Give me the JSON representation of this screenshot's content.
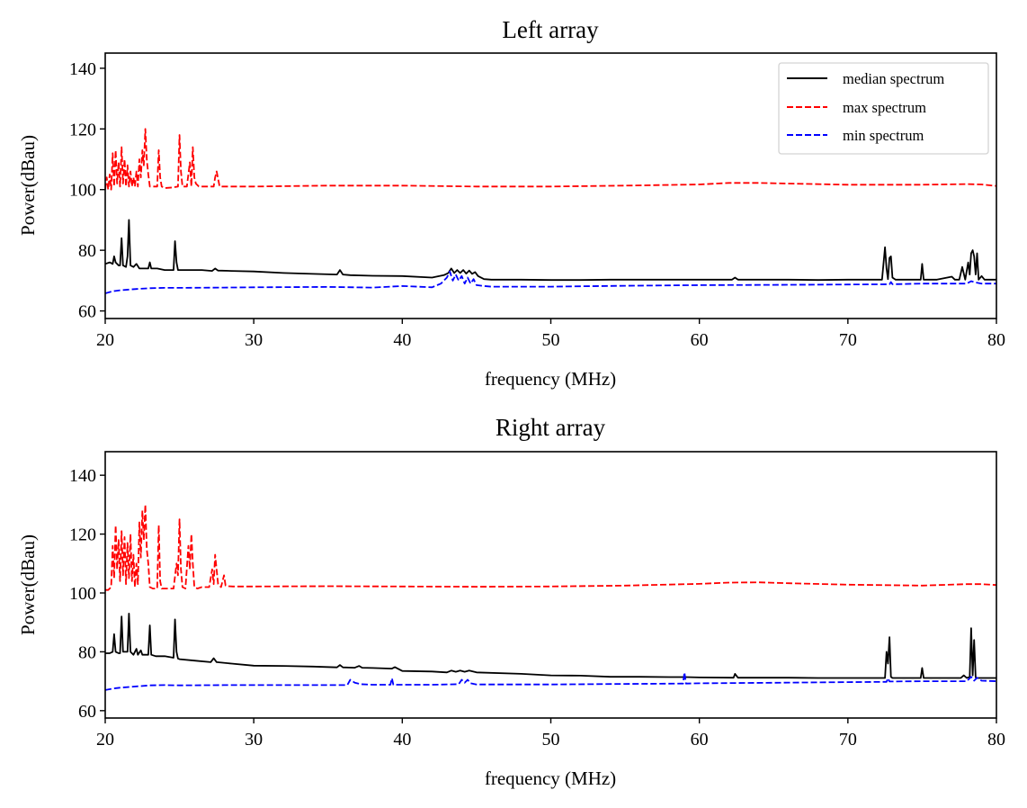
{
  "chart_data": [
    {
      "type": "line",
      "title": "Left array",
      "xlabel": "frequency (MHz)",
      "ylabel": "Power(dBau)",
      "xlim": [
        20,
        80
      ],
      "ylim": [
        57.5,
        145
      ],
      "xticks": [
        20,
        30,
        40,
        50,
        60,
        70,
        80
      ],
      "yticks": [
        60,
        80,
        100,
        120,
        140
      ],
      "grid": false,
      "legend": {
        "placement": "top-right",
        "entries": [
          "median spectrum",
          "max spectrum",
          "min spectrum"
        ]
      },
      "series": [
        {
          "name": "median spectrum",
          "color": "#000000",
          "style": "solid",
          "x": [
            20,
            20.3,
            20.5,
            20.6,
            20.7,
            20.9,
            21.0,
            21.1,
            21.2,
            21.4,
            21.5,
            21.6,
            21.7,
            21.9,
            22.1,
            22.3,
            22.5,
            22.7,
            22.9,
            23.0,
            23.1,
            23.5,
            24.0,
            24.6,
            24.7,
            24.8,
            24.9,
            25.0,
            25.5,
            26.5,
            27.2,
            27.4,
            27.6,
            28.5,
            30,
            32,
            34,
            35.6,
            35.8,
            36.0,
            36.5,
            38,
            40,
            42,
            42.8,
            43.1,
            43.3,
            43.5,
            43.7,
            43.9,
            44.1,
            44.3,
            44.5,
            44.7,
            44.9,
            45.1,
            45.5,
            46,
            48,
            50,
            52,
            54,
            56,
            58,
            60,
            62.2,
            62.4,
            62.6,
            64,
            66,
            68,
            70,
            71,
            72.3,
            72.5,
            72.6,
            72.7,
            72.8,
            72.9,
            73.0,
            73.2,
            74,
            74.9,
            75.0,
            75.1,
            76,
            77.0,
            77.2,
            77.5,
            77.7,
            77.9,
            78.1,
            78.2,
            78.3,
            78.4,
            78.5,
            78.6,
            78.7,
            78.8,
            79.0,
            79.2,
            79.5,
            80
          ],
          "y": [
            75.5,
            76,
            75.5,
            78,
            76,
            75,
            75,
            84,
            75,
            74.5,
            78,
            90,
            75,
            74.5,
            75.5,
            74,
            74,
            74,
            74,
            76,
            74,
            74,
            73.5,
            73.5,
            83,
            76,
            73.5,
            73.5,
            73.5,
            73.5,
            73.2,
            74,
            73.3,
            73.2,
            73,
            72.5,
            72.2,
            72,
            73.5,
            72,
            71.8,
            71.6,
            71.5,
            71,
            71.8,
            72.5,
            74,
            72.5,
            73.5,
            72.5,
            73.5,
            72.3,
            73.3,
            72.2,
            72.8,
            71.5,
            70.5,
            70.3,
            70.3,
            70.2,
            70.2,
            70.3,
            70.3,
            70.3,
            70.3,
            70.3,
            71,
            70.3,
            70.3,
            70.3,
            70.2,
            70.3,
            70.3,
            70.3,
            81,
            74,
            70.5,
            77.5,
            78,
            71,
            70.3,
            70.3,
            70.3,
            75.5,
            70.3,
            70.3,
            71.3,
            70.3,
            70.3,
            74.5,
            70.3,
            76,
            72,
            79,
            80,
            78,
            72,
            79,
            70.3,
            71.5,
            70.3,
            70.3,
            70.3
          ],
          "peaks": [
            {
              "x": 21.6,
              "y": 90
            },
            {
              "x": 21.1,
              "y": 84
            },
            {
              "x": 24.7,
              "y": 83
            },
            {
              "x": 72.5,
              "y": 81
            },
            {
              "x": 78.4,
              "y": 80
            }
          ]
        },
        {
          "name": "max spectrum",
          "color": "#ff0000",
          "style": "dashed",
          "x": [
            20,
            20.1,
            20.2,
            20.3,
            20.4,
            20.5,
            20.6,
            20.7,
            20.8,
            20.9,
            21.0,
            21.1,
            21.2,
            21.3,
            21.4,
            21.5,
            21.6,
            21.7,
            21.8,
            21.9,
            22.0,
            22.1,
            22.2,
            22.3,
            22.4,
            22.5,
            22.6,
            22.7,
            22.8,
            22.9,
            23.0,
            23.2,
            23.5,
            23.6,
            23.7,
            23.8,
            24.0,
            24.5,
            24.9,
            25.0,
            25.1,
            25.2,
            25.5,
            25.7,
            25.8,
            25.9,
            26.0,
            26.1,
            26.3,
            26.8,
            27.3,
            27.4,
            27.5,
            27.7,
            28,
            30,
            35,
            40,
            45,
            50,
            55,
            60,
            62,
            64,
            66,
            70,
            75,
            78,
            79,
            80
          ],
          "y": [
            100,
            104,
            100,
            105,
            100,
            112,
            101,
            113,
            102,
            109,
            101,
            114,
            102,
            110,
            101,
            108,
            101,
            106,
            101,
            104,
            101,
            106,
            101,
            110,
            104,
            113,
            108,
            120,
            110,
            105,
            101,
            101,
            101,
            113,
            104,
            101,
            100.5,
            100.7,
            101,
            118,
            106,
            101,
            101,
            109,
            101,
            114,
            104,
            102,
            101,
            101,
            101,
            104,
            106,
            101,
            101,
            101,
            101.3,
            101.3,
            101,
            101,
            101.3,
            101.7,
            102.2,
            102.2,
            102,
            101.6,
            101.6,
            101.8,
            101.7,
            101.2
          ],
          "peaks": [
            {
              "x": 22.7,
              "y": 120
            },
            {
              "x": 25.0,
              "y": 118
            },
            {
              "x": 25.9,
              "y": 114
            },
            {
              "x": 21.1,
              "y": 114
            },
            {
              "x": 23.6,
              "y": 113
            }
          ]
        },
        {
          "name": "min spectrum",
          "color": "#0000ff",
          "style": "dashed",
          "x": [
            20,
            20.5,
            21,
            22,
            23,
            24,
            25,
            28,
            30,
            35,
            38,
            40,
            42,
            42.6,
            43.0,
            43.2,
            43.4,
            43.6,
            43.8,
            44.0,
            44.2,
            44.4,
            44.6,
            44.8,
            45.0,
            45.5,
            46,
            50,
            55,
            60,
            65,
            70,
            72.8,
            72.9,
            73.0,
            75,
            78,
            78.3,
            78.5,
            79,
            80
          ],
          "y": [
            65.8,
            66.5,
            66.8,
            67.2,
            67.5,
            67.6,
            67.6,
            67.7,
            67.8,
            67.9,
            67.7,
            68.2,
            67.8,
            69,
            71,
            73,
            70,
            72,
            70,
            71.5,
            69,
            71,
            69,
            70.5,
            68.5,
            68.2,
            68,
            68,
            68.3,
            68.5,
            68.6,
            68.7,
            68.8,
            69.5,
            68.8,
            69,
            69,
            69.8,
            69.5,
            69,
            69
          ]
        }
      ]
    },
    {
      "type": "line",
      "title": "Right array",
      "xlabel": "frequency (MHz)",
      "ylabel": "Power(dBau)",
      "xlim": [
        20,
        80
      ],
      "ylim": [
        57.5,
        148
      ],
      "xticks": [
        20,
        30,
        40,
        50,
        60,
        70,
        80
      ],
      "yticks": [
        60,
        80,
        100,
        120,
        140
      ],
      "grid": false,
      "legend": null,
      "series": [
        {
          "name": "median spectrum",
          "color": "#000000",
          "style": "solid",
          "x": [
            20,
            20.2,
            20.3,
            20.5,
            20.6,
            20.7,
            20.9,
            21.0,
            21.1,
            21.2,
            21.3,
            21.5,
            21.6,
            21.7,
            21.9,
            22.1,
            22.2,
            22.4,
            22.5,
            22.7,
            22.9,
            23.0,
            23.1,
            23.4,
            24.0,
            24.6,
            24.7,
            24.8,
            24.9,
            25.0,
            26,
            27.1,
            27.3,
            27.5,
            28.5,
            30,
            32,
            34,
            35.6,
            35.8,
            36.0,
            36.8,
            37.1,
            37.3,
            38,
            39.3,
            39.5,
            40,
            42,
            43.0,
            43.3,
            43.6,
            43.9,
            44.2,
            44.5,
            45,
            48,
            50,
            52,
            54,
            56,
            58,
            59.0,
            60,
            62.3,
            62.4,
            62.6,
            64,
            66,
            68,
            70,
            72.5,
            72.6,
            72.7,
            72.8,
            72.9,
            73.0,
            73.2,
            74,
            74.9,
            75.0,
            75.1,
            76,
            77.6,
            77.8,
            78.0,
            78.2,
            78.3,
            78.4,
            78.5,
            78.6,
            78.7,
            78.8,
            79.0,
            79.5,
            80
          ],
          "y": [
            79.5,
            79.5,
            79.5,
            80,
            86,
            80,
            79.5,
            79.5,
            92,
            80,
            80,
            80,
            93,
            80,
            79,
            81,
            79,
            80.5,
            79,
            79,
            79,
            89,
            79,
            78.5,
            78.5,
            78,
            91,
            80,
            77.7,
            77.5,
            77,
            76.5,
            77.8,
            76.5,
            76,
            75.3,
            75.2,
            75,
            74.7,
            75.5,
            74.7,
            74.6,
            75.2,
            74.6,
            74.5,
            74.3,
            74.8,
            73.5,
            73.3,
            73,
            73.6,
            73.2,
            73.6,
            73.2,
            73.6,
            73,
            72.5,
            72,
            71.9,
            71.5,
            71.5,
            71.4,
            71.4,
            71.3,
            71.2,
            72.5,
            71.2,
            71.2,
            71.2,
            71.1,
            71.1,
            71.1,
            80,
            76,
            85,
            71.5,
            71.1,
            71.1,
            71.1,
            71.1,
            74.5,
            71.1,
            71.1,
            71.1,
            72,
            71.1,
            71.5,
            88,
            72,
            84,
            71.3,
            71.1,
            71.1,
            71.1,
            71.1,
            71.1
          ],
          "peaks": [
            {
              "x": 21.6,
              "y": 93
            },
            {
              "x": 21.1,
              "y": 92
            },
            {
              "x": 24.7,
              "y": 91
            },
            {
              "x": 23.0,
              "y": 89
            },
            {
              "x": 78.3,
              "y": 88
            },
            {
              "x": 72.9,
              "y": 85
            }
          ]
        },
        {
          "name": "max spectrum",
          "color": "#ff0000",
          "style": "dashed",
          "x": [
            20,
            20.2,
            20.4,
            20.5,
            20.6,
            20.7,
            20.8,
            20.9,
            21.0,
            21.1,
            21.2,
            21.3,
            21.4,
            21.5,
            21.6,
            21.7,
            21.8,
            21.9,
            22.0,
            22.1,
            22.2,
            22.3,
            22.4,
            22.5,
            22.6,
            22.7,
            22.8,
            22.9,
            23.0,
            23.2,
            23.5,
            23.6,
            23.7,
            23.8,
            24.0,
            24.3,
            24.6,
            24.8,
            24.9,
            25.0,
            25.1,
            25.2,
            25.4,
            25.6,
            25.7,
            25.8,
            25.9,
            26.0,
            26.2,
            26.5,
            27.0,
            27.2,
            27.3,
            27.4,
            27.6,
            27.8,
            28.0,
            28.1,
            28.3,
            28.6,
            29,
            30,
            35,
            40,
            45,
            50,
            55,
            60,
            62,
            64,
            66,
            70,
            75,
            78,
            79,
            80
          ],
          "y": [
            101,
            101,
            102,
            116,
            105,
            123,
            108,
            118,
            104,
            121,
            106,
            119,
            103,
            117,
            105,
            120,
            104,
            113,
            102,
            110,
            103,
            124,
            112,
            128,
            118,
            130,
            115,
            110,
            102,
            101.5,
            101.5,
            123,
            104,
            101.5,
            101.5,
            101.5,
            101.5,
            110,
            106,
            125,
            108,
            102,
            101.5,
            116,
            108,
            120,
            110,
            102,
            101.5,
            102,
            102,
            108,
            103,
            113,
            103,
            102,
            106,
            102.5,
            102.3,
            102.2,
            102.2,
            102.2,
            102.3,
            102.2,
            102.1,
            102.2,
            102.5,
            103.1,
            103.5,
            103.6,
            103.3,
            102.8,
            102.5,
            103,
            103,
            102.7
          ],
          "peaks": [
            {
              "x": 22.7,
              "y": 130
            },
            {
              "x": 25.0,
              "y": 125
            },
            {
              "x": 23.6,
              "y": 123
            },
            {
              "x": 20.7,
              "y": 123
            }
          ]
        },
        {
          "name": "min spectrum",
          "color": "#0000ff",
          "style": "dashed",
          "x": [
            20,
            20.5,
            21,
            22,
            23,
            24,
            25,
            28,
            30,
            35,
            36.3,
            36.5,
            36.8,
            37.2,
            38,
            39.2,
            39.3,
            39.4,
            40,
            42,
            43.8,
            44.0,
            44.2,
            44.4,
            44.6,
            45,
            48,
            50,
            55,
            58.9,
            59.0,
            59.1,
            60,
            65,
            70,
            72.6,
            72.7,
            72.8,
            75,
            78,
            78.3,
            78.5,
            78.7,
            79,
            80
          ],
          "y": [
            67,
            67.5,
            67.8,
            68.2,
            68.6,
            68.7,
            68.6,
            68.7,
            68.7,
            68.7,
            68.7,
            70.5,
            69.5,
            69,
            68.8,
            68.8,
            71,
            68.8,
            68.8,
            68.8,
            69,
            70.5,
            69.5,
            70.5,
            69.3,
            68.9,
            68.9,
            68.9,
            69.1,
            69.2,
            73,
            69.2,
            69.3,
            69.5,
            69.7,
            69.8,
            71,
            69.9,
            70,
            70,
            71.5,
            70.2,
            71.2,
            70.2,
            70
          ]
        }
      ]
    }
  ]
}
